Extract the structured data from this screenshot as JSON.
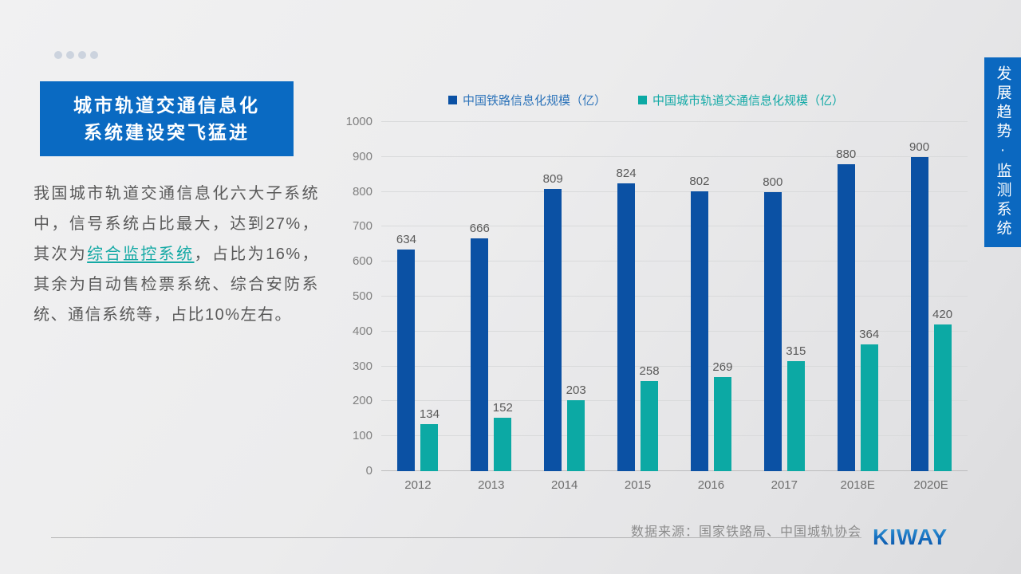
{
  "slide": {
    "pagination_dots": 4,
    "title": {
      "line1": "城市轨道交通信息化",
      "line2": "系统建设突飞猛进"
    },
    "paragraph": {
      "before": "我国城市轨道交通信息化六大子系统中，信号系统占比最大，达到27%，其次为",
      "link": "综合监控系统",
      "after": "，占比为16%，其余为自动售检票系统、综合安防系统、通信系统等，占比10%左右。"
    },
    "side_tab": "发展趋势·监测系统",
    "source": "数据来源：国家铁路局、中国城轨协会",
    "logo": "KIWAY"
  },
  "colors": {
    "accent_blue": "#0a6ac2",
    "bar_blue": "#0b51a4",
    "bar_teal": "#0ca9a4",
    "link_teal": "#14a9a5",
    "text_gray": "#595959"
  },
  "chart_data": {
    "type": "bar",
    "title": "",
    "categories": [
      "2012",
      "2013",
      "2014",
      "2015",
      "2016",
      "2017",
      "2018E",
      "2020E"
    ],
    "series": [
      {
        "name": "中国铁路信息化规模（亿）",
        "color": "#0b51a4",
        "values": [
          634,
          666,
          809,
          824,
          802,
          800,
          880,
          900
        ]
      },
      {
        "name": "中国城市轨道交通信息化规模（亿）",
        "color": "#0ca9a4",
        "values": [
          134,
          152,
          203,
          258,
          269,
          315,
          364,
          420
        ]
      }
    ],
    "xlabel": "",
    "ylabel": "",
    "ylim": [
      0,
      1000
    ],
    "ytick_step": 100,
    "grid": true,
    "legend_position": "top"
  }
}
